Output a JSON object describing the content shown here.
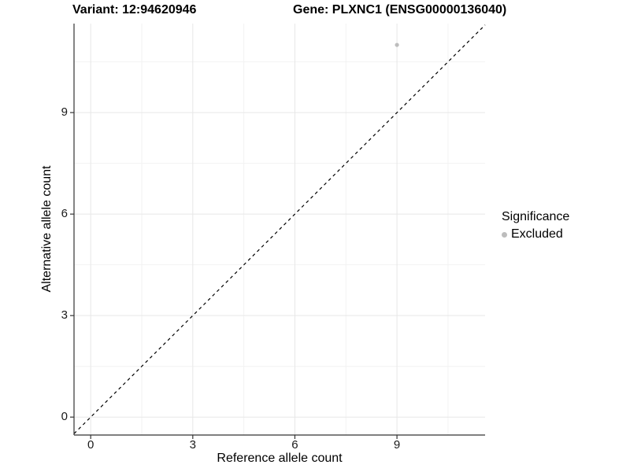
{
  "titles": {
    "variant": "Variant: 12:94620946",
    "gene": "Gene: PLXNC1 (ENSG00000136040)"
  },
  "chart_data": {
    "type": "scatter",
    "title": "Variant: 12:94620946 — Gene: PLXNC1 (ENSG00000136040)",
    "xlabel": "Reference allele count",
    "ylabel": "Alternative allele count",
    "xlim": [
      -0.49,
      11.59
    ],
    "ylim": [
      -0.53,
      11.63
    ],
    "xticks": [
      0,
      3,
      6,
      9
    ],
    "yticks": [
      0,
      3,
      6,
      9
    ],
    "minor_xticks": [
      1.5,
      4.5,
      7.5,
      10.5
    ],
    "minor_yticks": [
      1.5,
      4.5,
      7.5,
      10.5
    ],
    "grid": true,
    "series": [
      {
        "name": "Excluded",
        "color": "#bdbdbd",
        "points": [
          {
            "x": 9,
            "y": 11
          }
        ]
      }
    ],
    "reference_line": {
      "kind": "identity",
      "slope": 1,
      "intercept": 0,
      "style": "dashed",
      "color": "#000000"
    },
    "legend": {
      "title": "Significance",
      "position": "right",
      "items": [
        {
          "label": "Excluded",
          "color": "#bdbdbd"
        }
      ]
    }
  },
  "colors": {
    "background": "#ffffff",
    "grid_major": "#e7e7e7",
    "grid_minor": "#f2f2f2",
    "axis_line": "#333333",
    "tick_text": "#1a1a1a",
    "point": "#bdbdbd"
  }
}
